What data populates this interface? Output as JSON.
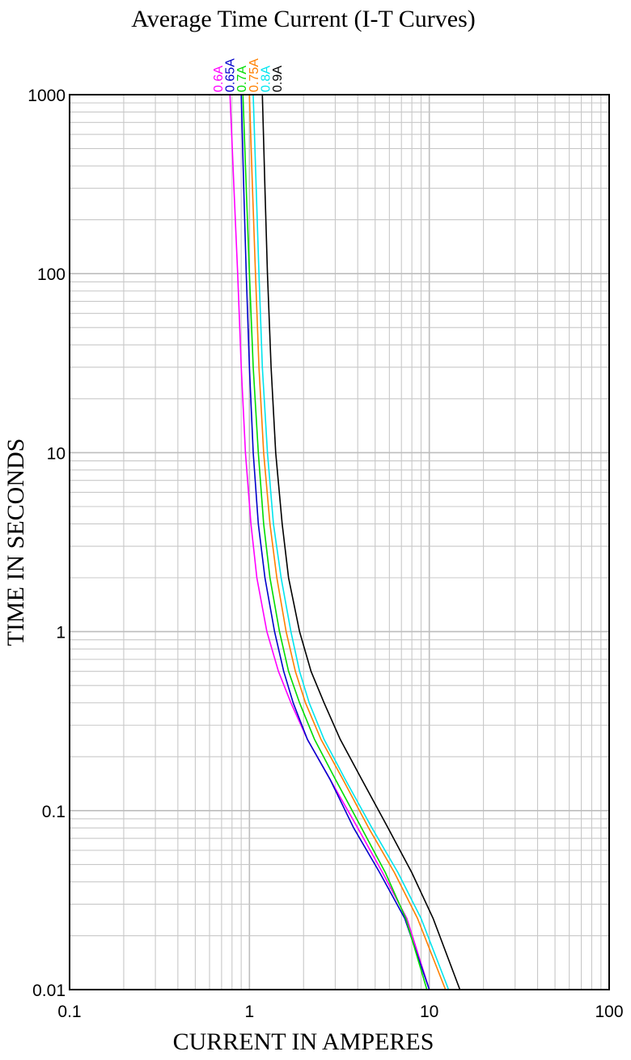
{
  "chart_data": {
    "type": "line",
    "title": "Average Time Current (I-T Curves)",
    "xlabel": "CURRENT IN AMPERES",
    "ylabel": "TIME IN SECONDS",
    "x_scale": "log",
    "y_scale": "log",
    "xlim": [
      0.1,
      100
    ],
    "ylim": [
      0.01,
      1000
    ],
    "grid": true,
    "x_ticks": [
      "0.1",
      "1",
      "10",
      "100"
    ],
    "y_ticks": [
      "1000",
      "100",
      "10",
      "1",
      "0.1",
      "0.01"
    ],
    "series": [
      {
        "name": "0.6A",
        "color": "#ff00ff",
        "points": [
          [
            0.78,
            1000
          ],
          [
            0.82,
            300
          ],
          [
            0.86,
            100
          ],
          [
            0.9,
            30
          ],
          [
            0.95,
            10
          ],
          [
            1.02,
            4
          ],
          [
            1.1,
            2
          ],
          [
            1.25,
            1
          ],
          [
            1.45,
            0.6
          ],
          [
            1.7,
            0.4
          ],
          [
            2.1,
            0.25
          ],
          [
            2.8,
            0.15
          ],
          [
            4.0,
            0.08
          ],
          [
            5.5,
            0.045
          ],
          [
            7.5,
            0.025
          ],
          [
            10.0,
            0.01
          ]
        ]
      },
      {
        "name": "0.65A",
        "color": "#0000cc",
        "points": [
          [
            0.9,
            1000
          ],
          [
            0.93,
            300
          ],
          [
            0.96,
            100
          ],
          [
            1.0,
            30
          ],
          [
            1.05,
            10
          ],
          [
            1.12,
            4
          ],
          [
            1.22,
            2
          ],
          [
            1.38,
            1
          ],
          [
            1.55,
            0.6
          ],
          [
            1.75,
            0.4
          ],
          [
            2.1,
            0.25
          ],
          [
            2.8,
            0.15
          ],
          [
            3.8,
            0.08
          ],
          [
            5.3,
            0.045
          ],
          [
            7.3,
            0.025
          ],
          [
            10.0,
            0.01
          ]
        ]
      },
      {
        "name": "0.7A",
        "color": "#00dd00",
        "points": [
          [
            0.92,
            1000
          ],
          [
            0.96,
            300
          ],
          [
            1.0,
            100
          ],
          [
            1.05,
            30
          ],
          [
            1.12,
            10
          ],
          [
            1.2,
            4
          ],
          [
            1.3,
            2
          ],
          [
            1.47,
            1
          ],
          [
            1.65,
            0.6
          ],
          [
            1.9,
            0.4
          ],
          [
            2.3,
            0.25
          ],
          [
            3.0,
            0.15
          ],
          [
            4.2,
            0.08
          ],
          [
            5.7,
            0.045
          ],
          [
            7.4,
            0.025
          ],
          [
            9.7,
            0.01
          ]
        ]
      },
      {
        "name": "0.75A",
        "color": "#ff8000",
        "points": [
          [
            1.0,
            1000
          ],
          [
            1.04,
            300
          ],
          [
            1.08,
            100
          ],
          [
            1.13,
            30
          ],
          [
            1.2,
            10
          ],
          [
            1.3,
            4
          ],
          [
            1.42,
            2
          ],
          [
            1.6,
            1
          ],
          [
            1.8,
            0.6
          ],
          [
            2.05,
            0.4
          ],
          [
            2.5,
            0.25
          ],
          [
            3.3,
            0.15
          ],
          [
            4.6,
            0.08
          ],
          [
            6.4,
            0.045
          ],
          [
            8.6,
            0.025
          ],
          [
            12.3,
            0.01
          ]
        ]
      },
      {
        "name": "0.8A",
        "color": "#00e5ee",
        "points": [
          [
            1.05,
            1000
          ],
          [
            1.09,
            300
          ],
          [
            1.13,
            100
          ],
          [
            1.18,
            30
          ],
          [
            1.26,
            10
          ],
          [
            1.36,
            4
          ],
          [
            1.5,
            2
          ],
          [
            1.7,
            1
          ],
          [
            1.9,
            0.6
          ],
          [
            2.15,
            0.4
          ],
          [
            2.6,
            0.25
          ],
          [
            3.4,
            0.15
          ],
          [
            4.8,
            0.08
          ],
          [
            6.7,
            0.045
          ],
          [
            9.0,
            0.025
          ],
          [
            12.8,
            0.01
          ]
        ]
      },
      {
        "name": "0.9A",
        "color": "#000000",
        "points": [
          [
            1.18,
            1000
          ],
          [
            1.22,
            300
          ],
          [
            1.26,
            100
          ],
          [
            1.32,
            30
          ],
          [
            1.4,
            10
          ],
          [
            1.52,
            4
          ],
          [
            1.65,
            2
          ],
          [
            1.9,
            1
          ],
          [
            2.2,
            0.6
          ],
          [
            2.6,
            0.4
          ],
          [
            3.2,
            0.25
          ],
          [
            4.2,
            0.15
          ],
          [
            5.9,
            0.08
          ],
          [
            8.0,
            0.045
          ],
          [
            10.5,
            0.025
          ],
          [
            14.8,
            0.01
          ]
        ]
      }
    ]
  }
}
